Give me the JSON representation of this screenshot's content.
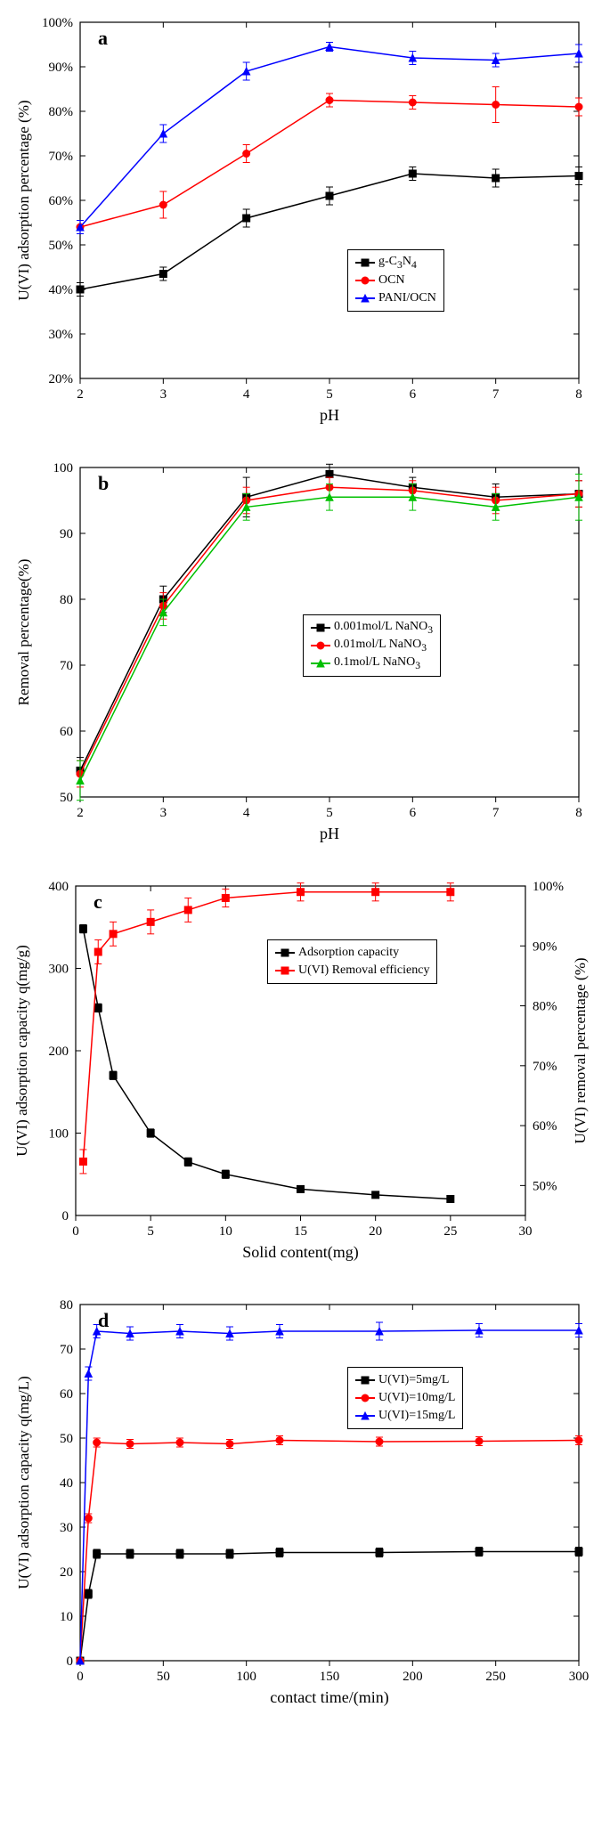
{
  "panel_a": {
    "tag": "a",
    "type": "line",
    "x": [
      2,
      3,
      4,
      5,
      6,
      7,
      8
    ],
    "xlim": [
      2,
      8
    ],
    "ylim": [
      20,
      100
    ],
    "ytick_step": 10,
    "xtick_step": 1,
    "xlabel": "pH",
    "ylabel": "U(VI)  adsorption  percentage  (%)",
    "y_suffix": "%",
    "series": [
      {
        "name": "g-C₃N₄",
        "label": "g-C",
        "sub": "3",
        "after": "N",
        "sub2": "4",
        "color": "#000000",
        "marker": "square",
        "y": [
          40,
          43.5,
          56,
          61,
          66,
          65,
          65.5
        ],
        "err": [
          1.5,
          1.5,
          2,
          2,
          1.5,
          2,
          2
        ]
      },
      {
        "name": "OCN",
        "label": "OCN",
        "color": "#ff0000",
        "marker": "circle",
        "y": [
          54,
          59,
          70.5,
          82.5,
          82,
          81.5,
          81
        ],
        "err": [
          1.5,
          3,
          2,
          1.5,
          1.5,
          4,
          2
        ]
      },
      {
        "name": "PANI/OCN",
        "label": "PANI/OCN",
        "color": "#0000ff",
        "marker": "triangle",
        "y": [
          54,
          75,
          89,
          94.5,
          92,
          91.5,
          93
        ],
        "err": [
          1.5,
          2,
          2,
          1,
          1.5,
          1.5,
          2
        ]
      }
    ]
  },
  "panel_b": {
    "tag": "b",
    "type": "line",
    "x": [
      2,
      3,
      4,
      5,
      6,
      7,
      8
    ],
    "xlim": [
      2,
      8
    ],
    "ylim": [
      50,
      100
    ],
    "ytick_step": 10,
    "xtick_step": 1,
    "xlabel": "pH",
    "ylabel": "Removal percentage(%)",
    "series": [
      {
        "name": "0.001mol/L NaNO₃",
        "label": "0.001mol/L NaNO",
        "sub": "3",
        "color": "#000000",
        "marker": "square",
        "y": [
          54,
          80,
          95.5,
          99,
          97,
          95.5,
          96
        ],
        "err": [
          2,
          2,
          3,
          1.5,
          1.5,
          2,
          2
        ]
      },
      {
        "name": "0.01mol/L NaNO₃",
        "label": "0.01mol/L NaNO",
        "sub": "3",
        "color": "#ff0000",
        "marker": "circle",
        "y": [
          53.5,
          79,
          95,
          97,
          96.5,
          95,
          96
        ],
        "err": [
          2,
          2,
          2,
          1.5,
          1.5,
          2,
          2
        ]
      },
      {
        "name": "0.1mol/L NaNO₃",
        "label": "0.1mol/L NaNO",
        "sub": "3",
        "color": "#00c000",
        "marker": "triangle",
        "y": [
          52.5,
          78,
          94,
          95.5,
          95.5,
          94,
          95.5
        ],
        "err": [
          3,
          2,
          2,
          2,
          2,
          2,
          3.5
        ]
      }
    ]
  },
  "panel_c": {
    "tag": "c",
    "type": "line",
    "x": [
      0.5,
      1.5,
      2.5,
      5,
      7.5,
      10,
      15,
      20,
      25
    ],
    "xlim": [
      0,
      30
    ],
    "ylim_left": [
      0,
      400
    ],
    "ylim_right": [
      45,
      100
    ],
    "ytick_step_left": 100,
    "ytick_step_right": 10,
    "xtick_step": 5,
    "xlabel": "Solid content(mg)",
    "ylabel_left": "U(VI) adsorption capacity q(mg/g)",
    "ylabel_right": "U(VI) removal percentage (%)",
    "y_right_suffix": "%",
    "series_left": {
      "name": "Adsorption capacity",
      "label": "Adsorption capacity",
      "color": "#000000",
      "marker": "square",
      "y": [
        348,
        252,
        170,
        100,
        65,
        50,
        32,
        25,
        20
      ],
      "err": [
        5,
        5,
        5,
        5,
        5,
        5,
        3,
        3,
        3
      ]
    },
    "series_right": {
      "name": "U(VI) Removal efficiency",
      "label": "U(VI) Removal efficiency",
      "color": "#ff0000",
      "marker": "square",
      "y": [
        54,
        89,
        92,
        94,
        96,
        98,
        99,
        99,
        99
      ],
      "err": [
        2,
        2,
        2,
        2,
        2,
        1.5,
        1.5,
        1.5,
        1.5
      ]
    }
  },
  "panel_d": {
    "tag": "d",
    "type": "line",
    "x": [
      0,
      5,
      10,
      30,
      60,
      90,
      120,
      180,
      240,
      300
    ],
    "xlim": [
      0,
      300
    ],
    "ylim": [
      0,
      80
    ],
    "ytick_step": 10,
    "xtick_step": 50,
    "xlabel": "contact time/(min)",
    "ylabel": "U(VI) adsorption capacity q(mg/L)",
    "series": [
      {
        "name": "U(VI)=5mg/L",
        "label": "U(VI)=5mg/L",
        "color": "#000000",
        "marker": "square",
        "y": [
          0,
          15,
          24,
          24,
          24,
          24,
          24.3,
          24.3,
          24.5,
          24.5
        ],
        "err": [
          0,
          1,
          1,
          1,
          1,
          1,
          1,
          1,
          1,
          1
        ]
      },
      {
        "name": "U(VI)=10mg/L",
        "label": "U(VI)=10mg/L",
        "color": "#ff0000",
        "marker": "circle",
        "y": [
          0,
          32,
          49,
          48.7,
          49,
          48.7,
          49.5,
          49.2,
          49.3,
          49.5
        ],
        "err": [
          0,
          1,
          1,
          1,
          1,
          1,
          1,
          1,
          1,
          1
        ]
      },
      {
        "name": "U(VI)=15mg/L",
        "label": "U(VI)=15mg/L",
        "color": "#0000ff",
        "marker": "triangle",
        "y": [
          0,
          64.5,
          74,
          73.5,
          74,
          73.5,
          74,
          74,
          74.2,
          74.2
        ],
        "err": [
          0,
          1.5,
          1.5,
          1.5,
          1.5,
          1.5,
          1.5,
          2,
          1.5,
          1.5
        ]
      }
    ]
  },
  "colors": {
    "background": "#ffffff",
    "axis": "#000000",
    "grid": "none"
  },
  "font": {
    "axis_label_size": 18,
    "tick_size": 15,
    "legend_size": 14,
    "tag_size": 22
  }
}
